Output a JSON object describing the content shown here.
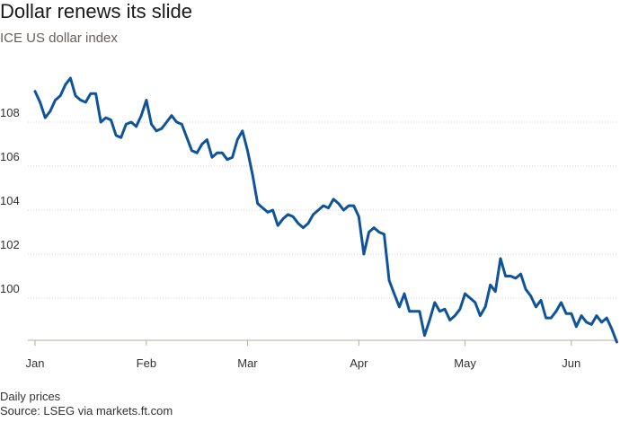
{
  "chart_data": {
    "type": "line",
    "title": "Dollar renews its slide",
    "subtitle": "ICE US dollar index",
    "xlabel": "",
    "ylabel": "",
    "ylim": [
      98,
      110
    ],
    "y_ticks": [
      100,
      102,
      104,
      106,
      108
    ],
    "x_ticks": [
      "Jan",
      "Feb",
      "Mar",
      "Apr",
      "May",
      "Jun"
    ],
    "grid": true,
    "line_color": "#0f5499",
    "series": [
      {
        "values": [
          [
            0.0,
            109.4
          ],
          [
            1.0,
            108.9
          ],
          [
            2.0,
            108.2
          ],
          [
            3.0,
            108.5
          ],
          [
            4.0,
            109.0
          ],
          [
            5.0,
            109.2
          ],
          [
            6.0,
            109.7
          ],
          [
            7.0,
            110.0
          ],
          [
            8.0,
            109.2
          ],
          [
            9.0,
            109.0
          ],
          [
            10.0,
            108.9
          ],
          [
            11.0,
            109.3
          ],
          [
            12.0,
            109.3
          ],
          [
            13.0,
            108.0
          ],
          [
            14.0,
            108.2
          ],
          [
            15.0,
            108.1
          ],
          [
            16.0,
            107.4
          ],
          [
            17.0,
            107.3
          ],
          [
            18.0,
            107.9
          ],
          [
            19.0,
            108.0
          ],
          [
            20.0,
            107.8
          ],
          [
            21.0,
            108.3
          ],
          [
            22.0,
            109.0
          ],
          [
            23.0,
            107.9
          ],
          [
            24.0,
            107.6
          ],
          [
            25.0,
            107.7
          ],
          [
            26.0,
            108.0
          ],
          [
            27.0,
            108.3
          ],
          [
            28.0,
            108.0
          ],
          [
            29.0,
            107.9
          ],
          [
            30.0,
            107.3
          ],
          [
            31.0,
            106.7
          ],
          [
            32.0,
            106.6
          ],
          [
            33.0,
            107.0
          ],
          [
            34.0,
            107.2
          ],
          [
            35.0,
            106.4
          ],
          [
            36.0,
            106.6
          ],
          [
            37.0,
            106.6
          ],
          [
            38.0,
            106.3
          ],
          [
            39.0,
            106.4
          ],
          [
            40.0,
            107.2
          ],
          [
            41.0,
            107.6
          ],
          [
            42.0,
            106.7
          ],
          [
            43.0,
            105.6
          ],
          [
            44.0,
            104.3
          ],
          [
            45.0,
            104.1
          ],
          [
            46.0,
            103.9
          ],
          [
            47.0,
            104.0
          ],
          [
            48.0,
            103.3
          ],
          [
            49.0,
            103.6
          ],
          [
            50.0,
            103.8
          ],
          [
            51.0,
            103.7
          ],
          [
            52.0,
            103.4
          ],
          [
            53.0,
            103.2
          ],
          [
            54.0,
            103.4
          ],
          [
            55.0,
            103.8
          ],
          [
            56.0,
            104.0
          ],
          [
            57.0,
            104.2
          ],
          [
            58.0,
            104.1
          ],
          [
            59.0,
            104.5
          ],
          [
            60.0,
            104.3
          ],
          [
            61.0,
            104.0
          ],
          [
            62.0,
            104.2
          ],
          [
            63.0,
            104.2
          ],
          [
            64.0,
            103.7
          ],
          [
            65.0,
            102.0
          ],
          [
            66.0,
            103.0
          ],
          [
            67.0,
            103.2
          ],
          [
            68.0,
            103.0
          ],
          [
            69.0,
            102.9
          ],
          [
            70.0,
            100.8
          ],
          [
            71.0,
            100.2
          ],
          [
            72.0,
            99.6
          ],
          [
            73.0,
            100.2
          ],
          [
            74.0,
            99.4
          ],
          [
            75.0,
            99.4
          ],
          [
            76.0,
            99.4
          ],
          [
            77.0,
            98.3
          ],
          [
            78.0,
            99.0
          ],
          [
            79.0,
            99.8
          ],
          [
            80.0,
            99.4
          ],
          [
            81.0,
            99.5
          ],
          [
            82.0,
            99.0
          ],
          [
            83.0,
            99.2
          ],
          [
            84.0,
            99.5
          ],
          [
            85.0,
            100.2
          ],
          [
            86.0,
            100.0
          ],
          [
            87.0,
            99.8
          ],
          [
            88.0,
            99.2
          ],
          [
            89.0,
            99.6
          ],
          [
            90.0,
            100.6
          ],
          [
            91.0,
            100.3
          ],
          [
            92.0,
            101.8
          ],
          [
            93.0,
            101.0
          ],
          [
            94.0,
            101.0
          ],
          [
            95.0,
            100.9
          ],
          [
            96.0,
            101.1
          ],
          [
            97.0,
            100.4
          ],
          [
            98.0,
            100.1
          ],
          [
            99.0,
            99.6
          ],
          [
            100.0,
            99.9
          ],
          [
            101.0,
            99.1
          ],
          [
            102.0,
            99.1
          ],
          [
            103.0,
            99.4
          ],
          [
            104.0,
            99.8
          ],
          [
            105.0,
            99.3
          ],
          [
            106.0,
            99.3
          ],
          [
            107.0,
            98.7
          ],
          [
            108.0,
            99.2
          ],
          [
            109.0,
            98.9
          ],
          [
            110.0,
            98.8
          ],
          [
            111.0,
            99.2
          ],
          [
            112.0,
            98.9
          ],
          [
            113.0,
            99.1
          ],
          [
            114.0,
            98.6
          ],
          [
            115.0,
            98.0
          ]
        ]
      }
    ]
  },
  "footer": {
    "note": "Daily prices",
    "source": "Source: LSEG via markets.ft.com"
  }
}
